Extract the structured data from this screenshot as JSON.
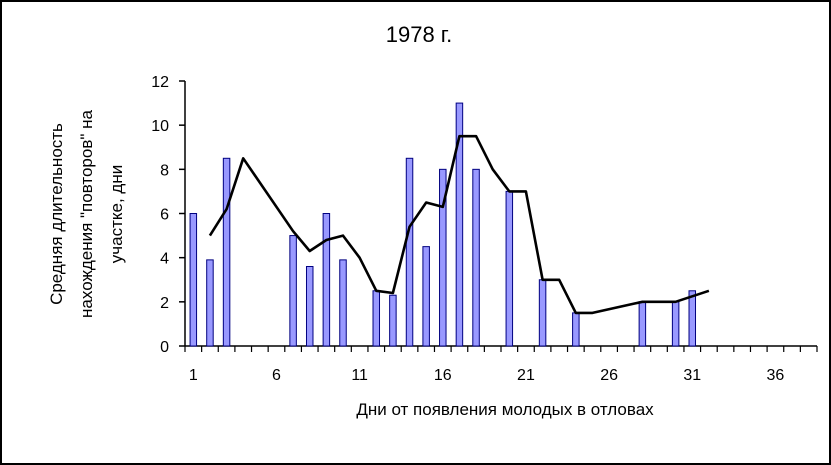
{
  "chart_data": {
    "type": "bar",
    "title": "1978 г.",
    "xlabel": "Дни от появления молодых в отловах",
    "ylabel_lines": [
      "Средняя длительность",
      "нахождения \"повторов\" на",
      "участке, дни"
    ],
    "xlim": [
      0,
      38
    ],
    "ylim": [
      0,
      12
    ],
    "x_ticks": [
      1,
      6,
      11,
      16,
      21,
      26,
      31,
      36
    ],
    "y_ticks": [
      0,
      2,
      4,
      6,
      8,
      10,
      12
    ],
    "colors": {
      "bar_fill": "#9999ff",
      "bar_stroke": "#000080",
      "line": "#000000"
    },
    "bars": [
      {
        "x": 1,
        "y": 6
      },
      {
        "x": 2,
        "y": 3.9
      },
      {
        "x": 3,
        "y": 8.5
      },
      {
        "x": 7,
        "y": 5
      },
      {
        "x": 8,
        "y": 3.6
      },
      {
        "x": 9,
        "y": 6
      },
      {
        "x": 10,
        "y": 3.9
      },
      {
        "x": 12,
        "y": 2.5
      },
      {
        "x": 13,
        "y": 2.3
      },
      {
        "x": 14,
        "y": 8.5
      },
      {
        "x": 15,
        "y": 4.5
      },
      {
        "x": 16,
        "y": 8
      },
      {
        "x": 17,
        "y": 11
      },
      {
        "x": 18,
        "y": 8
      },
      {
        "x": 20,
        "y": 7
      },
      {
        "x": 22,
        "y": 3
      },
      {
        "x": 24,
        "y": 1.5
      },
      {
        "x": 28,
        "y": 2
      },
      {
        "x": 30,
        "y": 2
      },
      {
        "x": 31,
        "y": 2.5
      }
    ],
    "line": [
      {
        "x": 2,
        "y": 5
      },
      {
        "x": 3,
        "y": 6.2
      },
      {
        "x": 4,
        "y": 8.5
      },
      {
        "x": 7,
        "y": 5.2
      },
      {
        "x": 8,
        "y": 4.3
      },
      {
        "x": 9,
        "y": 4.8
      },
      {
        "x": 10,
        "y": 5
      },
      {
        "x": 11,
        "y": 4
      },
      {
        "x": 12,
        "y": 2.5
      },
      {
        "x": 13,
        "y": 2.4
      },
      {
        "x": 14,
        "y": 5.4
      },
      {
        "x": 15,
        "y": 6.5
      },
      {
        "x": 16,
        "y": 6.3
      },
      {
        "x": 17,
        "y": 9.5
      },
      {
        "x": 18,
        "y": 9.5
      },
      {
        "x": 19,
        "y": 8
      },
      {
        "x": 20,
        "y": 7
      },
      {
        "x": 21,
        "y": 7
      },
      {
        "x": 22,
        "y": 3
      },
      {
        "x": 23,
        "y": 3
      },
      {
        "x": 24,
        "y": 1.5
      },
      {
        "x": 25,
        "y": 1.5
      },
      {
        "x": 28,
        "y": 2
      },
      {
        "x": 30,
        "y": 2
      },
      {
        "x": 32,
        "y": 2.5
      }
    ]
  }
}
